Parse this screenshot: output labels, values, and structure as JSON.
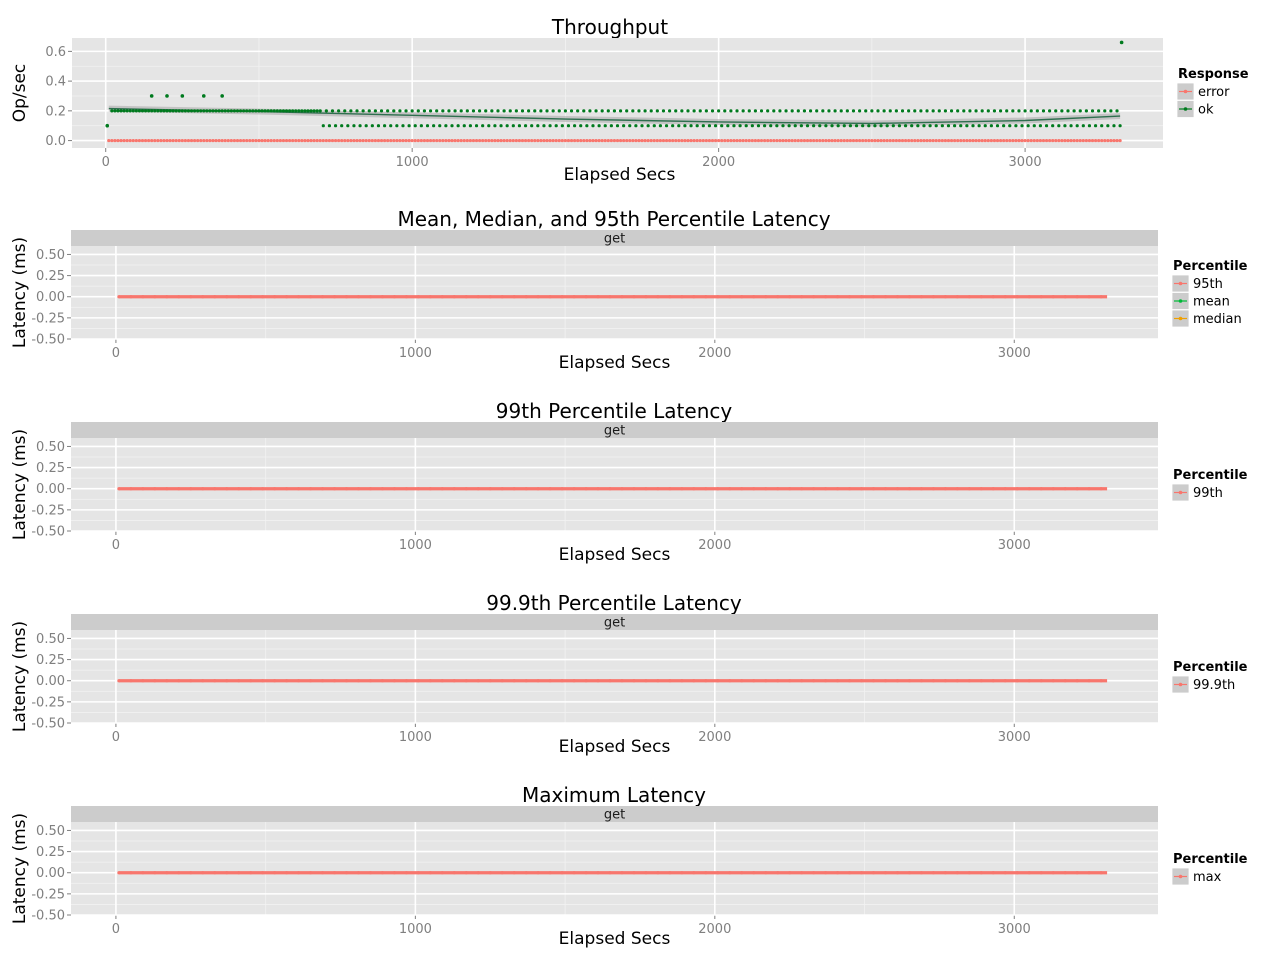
{
  "colors": {
    "panel_bg": "#e5e5e5",
    "grid_major": "#ffffff",
    "grid_minor": "#f2f2f2",
    "strip_bg": "#cccccc",
    "tick_text": "#7f7f7f",
    "error": "#f8766d",
    "ok": "#007a1e",
    "mean": "#00ba38",
    "median": "#f0a000",
    "smooth_line": "#2f6f4f",
    "smooth_band": "#a8a8a8"
  },
  "chart_data": [
    {
      "type": "scatter",
      "title": "Throughput",
      "xlabel": "Elapsed Secs",
      "ylabel": "Op/sec",
      "xlim": [
        -110,
        3450
      ],
      "ylim": [
        -0.05,
        0.69
      ],
      "x_ticks": [
        0,
        1000,
        2000,
        3000
      ],
      "x_tick_labels": [
        "0",
        "1000",
        "2000",
        "3000"
      ],
      "y_ticks": [
        0.0,
        0.2,
        0.4,
        0.6
      ],
      "y_tick_labels": [
        "0.0",
        "0.2",
        "0.4",
        "0.6"
      ],
      "grid": true,
      "legend": {
        "title": "Response",
        "placement": "right",
        "entries": [
          "error",
          "ok"
        ]
      },
      "series": [
        {
          "name": "error",
          "color": "#f8766d",
          "pattern": "constant",
          "x_start": 10,
          "x_end": 3310,
          "x_step": 10,
          "value": 0.0
        },
        {
          "name": "ok",
          "color": "#007a1e",
          "pattern": "alternating",
          "segments": [
            {
              "x_start": 20,
              "x_end": 690,
              "value": 0.2
            },
            {
              "x_start": 700,
              "x_end": 3310,
              "values": [
                0.2,
                0.1
              ]
            }
          ],
          "outliers": [
            {
              "x": 5,
              "y": 0.1
            },
            {
              "x": 150,
              "y": 0.3
            },
            {
              "x": 200,
              "y": 0.3
            },
            {
              "x": 250,
              "y": 0.3
            },
            {
              "x": 320,
              "y": 0.3
            },
            {
              "x": 380,
              "y": 0.3
            },
            {
              "x": 3315,
              "y": 0.66
            }
          ],
          "smooth": {
            "x": [
              10,
              500,
              1000,
              1500,
              2000,
              2500,
              3000,
              3310
            ],
            "y": [
              0.215,
              0.195,
              0.17,
              0.145,
              0.125,
              0.115,
              0.135,
              0.165
            ]
          }
        }
      ]
    },
    {
      "type": "line",
      "title": "Mean, Median, and 95th Percentile Latency",
      "facet": "get",
      "xlabel": "Elapsed Secs",
      "ylabel": "Latency (ms)",
      "xlim": [
        -150,
        3480
      ],
      "ylim": [
        -0.5,
        0.6
      ],
      "x_ticks": [
        0,
        1000,
        2000,
        3000
      ],
      "x_tick_labels": [
        "0",
        "1000",
        "2000",
        "3000"
      ],
      "y_ticks": [
        0.5,
        0.25,
        0.0,
        -0.25,
        -0.5
      ],
      "y_tick_labels": [
        "0.50",
        "0.25",
        "0.00",
        "-0.25",
        "-0.50"
      ],
      "grid": true,
      "legend": {
        "title": "Percentile",
        "placement": "right",
        "entries": [
          "95th",
          "mean",
          "median"
        ]
      },
      "series": [
        {
          "name": "95th",
          "color": "#f8766d",
          "x_start": 10,
          "x_end": 3310,
          "value": 0.0
        },
        {
          "name": "mean",
          "color": "#00ba38",
          "x_start": 10,
          "x_end": 3310,
          "value": 0.0
        },
        {
          "name": "median",
          "color": "#f0a000",
          "x_start": 10,
          "x_end": 3310,
          "value": 0.0
        }
      ]
    },
    {
      "type": "line",
      "title": "99th Percentile Latency",
      "facet": "get",
      "xlabel": "Elapsed Secs",
      "ylabel": "Latency (ms)",
      "xlim": [
        -150,
        3480
      ],
      "ylim": [
        -0.5,
        0.6
      ],
      "x_ticks": [
        0,
        1000,
        2000,
        3000
      ],
      "x_tick_labels": [
        "0",
        "1000",
        "2000",
        "3000"
      ],
      "y_ticks": [
        0.5,
        0.25,
        0.0,
        -0.25,
        -0.5
      ],
      "y_tick_labels": [
        "0.50",
        "0.25",
        "0.00",
        "-0.25",
        "-0.50"
      ],
      "grid": true,
      "legend": {
        "title": "Percentile",
        "placement": "right",
        "entries": [
          "99th"
        ]
      },
      "series": [
        {
          "name": "99th",
          "color": "#f8766d",
          "x_start": 10,
          "x_end": 3310,
          "value": 0.0
        }
      ]
    },
    {
      "type": "line",
      "title": "99.9th Percentile Latency",
      "facet": "get",
      "xlabel": "Elapsed Secs",
      "ylabel": "Latency (ms)",
      "xlim": [
        -150,
        3480
      ],
      "ylim": [
        -0.5,
        0.6
      ],
      "x_ticks": [
        0,
        1000,
        2000,
        3000
      ],
      "x_tick_labels": [
        "0",
        "1000",
        "2000",
        "3000"
      ],
      "y_ticks": [
        0.5,
        0.25,
        0.0,
        -0.25,
        -0.5
      ],
      "y_tick_labels": [
        "0.50",
        "0.25",
        "0.00",
        "-0.25",
        "-0.50"
      ],
      "grid": true,
      "legend": {
        "title": "Percentile",
        "placement": "right",
        "entries": [
          "99.9th"
        ]
      },
      "series": [
        {
          "name": "99.9th",
          "color": "#f8766d",
          "x_start": 10,
          "x_end": 3310,
          "value": 0.0
        }
      ]
    },
    {
      "type": "line",
      "title": "Maximum Latency",
      "facet": "get",
      "xlabel": "Elapsed Secs",
      "ylabel": "Latency (ms)",
      "xlim": [
        -150,
        3480
      ],
      "ylim": [
        -0.5,
        0.6
      ],
      "x_ticks": [
        0,
        1000,
        2000,
        3000
      ],
      "x_tick_labels": [
        "0",
        "1000",
        "2000",
        "3000"
      ],
      "y_ticks": [
        0.5,
        0.25,
        0.0,
        -0.25,
        -0.5
      ],
      "y_tick_labels": [
        "0.50",
        "0.25",
        "0.00",
        "-0.25",
        "-0.50"
      ],
      "grid": true,
      "legend": {
        "title": "Percentile",
        "placement": "right",
        "entries": [
          "max"
        ]
      },
      "series": [
        {
          "name": "max",
          "color": "#f8766d",
          "x_start": 10,
          "x_end": 3310,
          "value": 0.0
        }
      ]
    }
  ]
}
